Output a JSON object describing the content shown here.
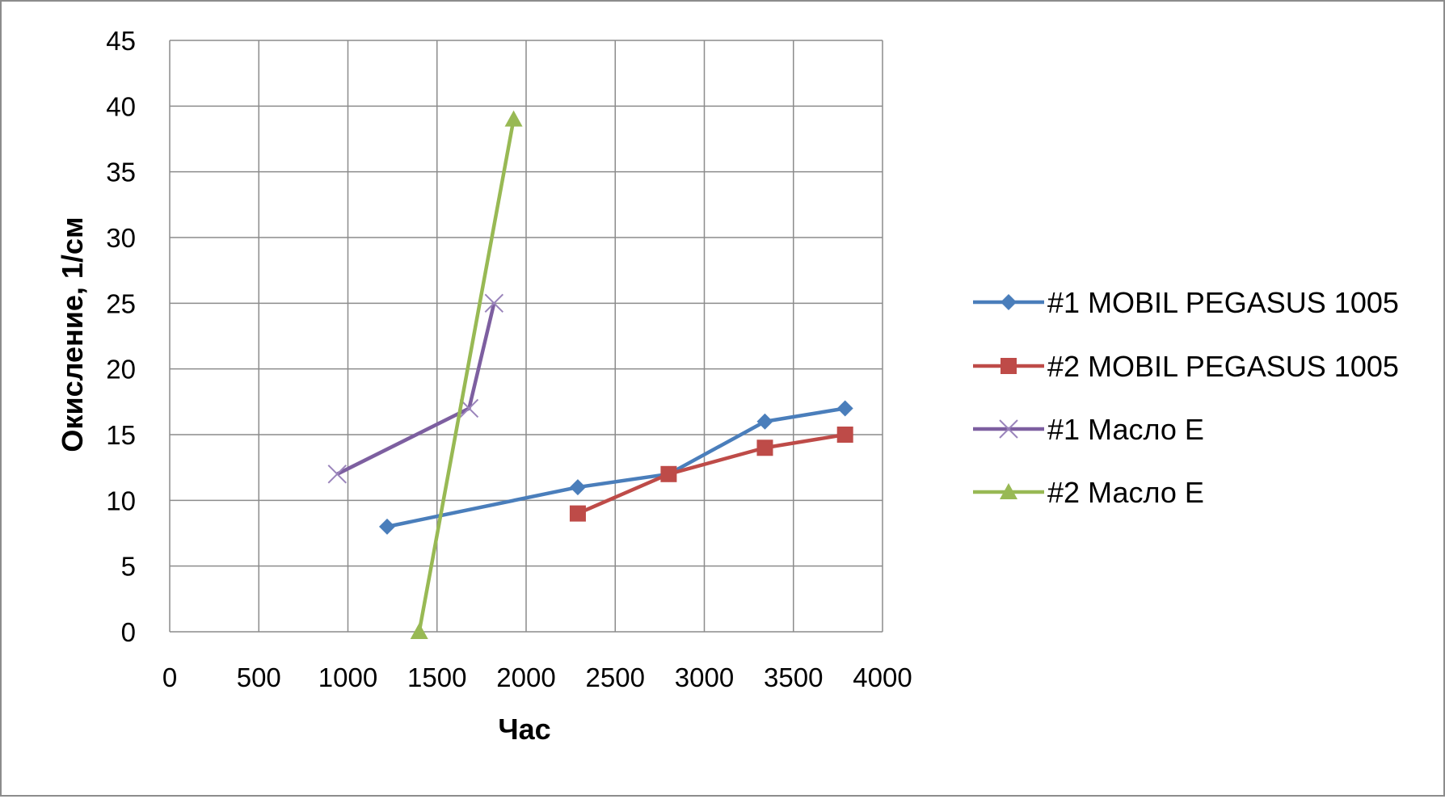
{
  "chart_data": {
    "type": "line",
    "title": "",
    "xlabel": "Час",
    "ylabel": "Окисление, 1/см",
    "xlim": [
      0,
      4000
    ],
    "ylim": [
      0,
      45
    ],
    "xticks": [
      "0",
      "500",
      "1000",
      "1500",
      "2000",
      "2500",
      "3000",
      "3500",
      "4000"
    ],
    "yticks": [
      "0",
      "5",
      "10",
      "15",
      "20",
      "25",
      "30",
      "35",
      "40",
      "45"
    ],
    "grid": true,
    "legend_position": "right",
    "series": [
      {
        "name": "#1 MOBIL PEGASUS 1005",
        "color": "#4a7ebb",
        "marker": "diamond",
        "x": [
          1220,
          2290,
          2800,
          3340,
          3790
        ],
        "y": [
          8,
          11,
          12,
          16,
          17
        ]
      },
      {
        "name": "#2 MOBIL PEGASUS 1005",
        "color": "#be4b48",
        "marker": "square",
        "x": [
          2290,
          2800,
          3340,
          3790
        ],
        "y": [
          9,
          12,
          14,
          15
        ]
      },
      {
        "name": "#1 Масло E",
        "color": "#7d5fa0",
        "marker": "x",
        "x": [
          940,
          1680,
          1820
        ],
        "y": [
          12,
          17,
          25
        ]
      },
      {
        "name": "#2 Масло E",
        "color": "#98b954",
        "marker": "triangle",
        "x": [
          1400,
          1930
        ],
        "y": [
          0,
          39
        ]
      }
    ]
  }
}
